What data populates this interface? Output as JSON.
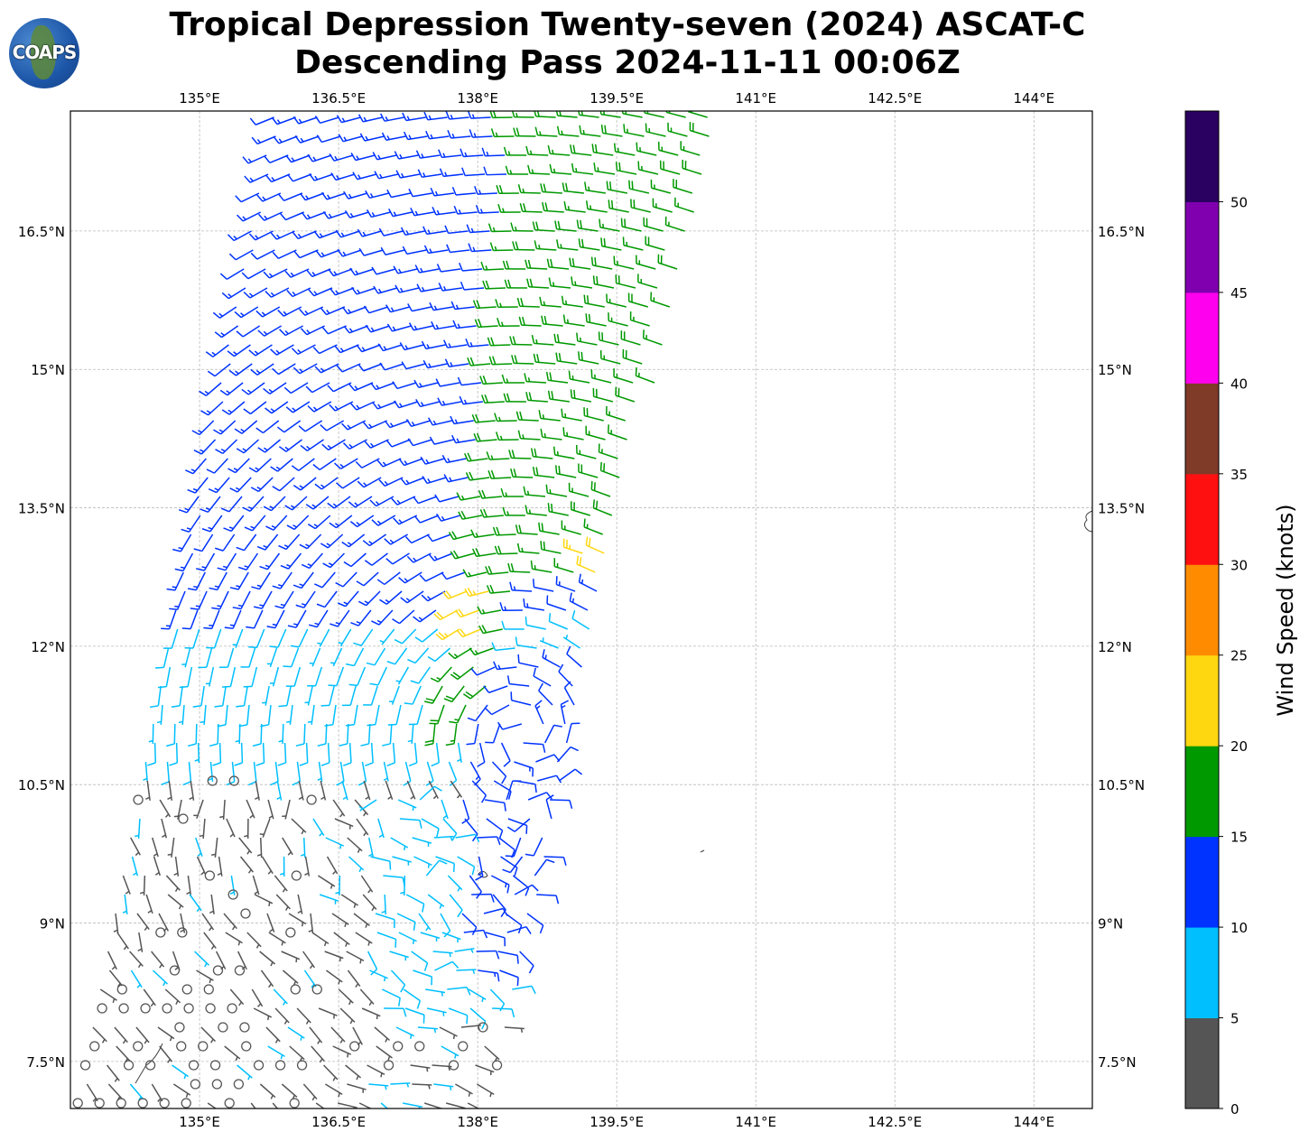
{
  "title": {
    "line1": "Tropical Depression Twenty-seven (2024) ASCAT-C",
    "line2": "Descending Pass 2024-11-11 00:06Z"
  },
  "logo": {
    "text": "COAPS"
  },
  "map": {
    "lon_range": [
      133.607,
      144.63
    ],
    "lat_range": [
      6.99,
      17.8
    ],
    "lon_ticks": [
      {
        "v": 135,
        "label": "135°E"
      },
      {
        "v": 136.5,
        "label": "136.5°E"
      },
      {
        "v": 138,
        "label": "138°E"
      },
      {
        "v": 139.5,
        "label": "139.5°E"
      },
      {
        "v": 141,
        "label": "141°E"
      },
      {
        "v": 142.5,
        "label": "142.5°E"
      },
      {
        "v": 144,
        "label": "144°E"
      }
    ],
    "lat_ticks": [
      {
        "v": 16.5,
        "label": "16.5°N"
      },
      {
        "v": 15,
        "label": "15°N"
      },
      {
        "v": 13.5,
        "label": "13.5°N"
      },
      {
        "v": 12,
        "label": "12°N"
      },
      {
        "v": 10.5,
        "label": "10.5°N"
      },
      {
        "v": 9,
        "label": "9°N"
      },
      {
        "v": 7.5,
        "label": "7.5°N"
      }
    ],
    "storm_center_approx": [
      138.5,
      12.4
    ]
  },
  "colorbar": {
    "label": "Wind Speed (knots)",
    "bounds": [
      0,
      5,
      10,
      15,
      20,
      25,
      30,
      35,
      40,
      45,
      50,
      55
    ],
    "tick_labels": [
      "0",
      "5",
      "10",
      "15",
      "20",
      "25",
      "30",
      "35",
      "40",
      "45",
      "50"
    ],
    "colors": [
      "#555555",
      "#00bfff",
      "#0033ff",
      "#009900",
      "#ffd710",
      "#ff8c00",
      "#ff1010",
      "#7f3a28",
      "#ff00ee",
      "#8000b0",
      "#2a0060"
    ]
  }
}
